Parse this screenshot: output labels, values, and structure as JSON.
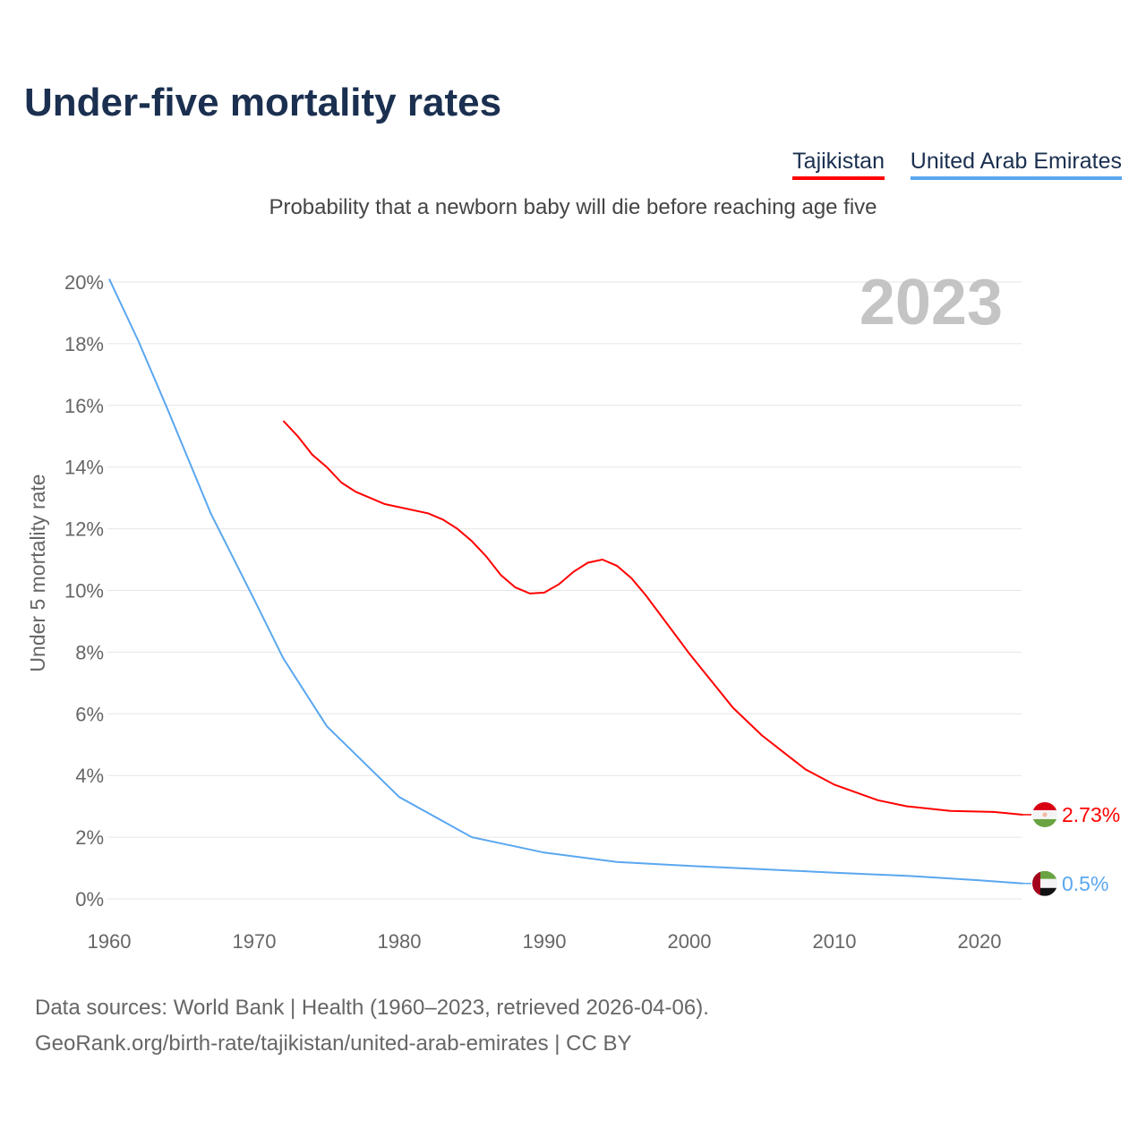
{
  "title": "Under-five mortality rates",
  "subtitle": "Probability that a newborn baby will die before reaching age five",
  "year_watermark": "2023",
  "footer": {
    "line1": "Data sources: World Bank | Health (1960–2023, retrieved 2026-04-06).",
    "line2": "GeoRank.org/birth-rate/tajikistan/united-arab-emirates | CC BY"
  },
  "chart_data": {
    "type": "line",
    "title": "Under-five mortality rates",
    "xlabel": "",
    "ylabel": "Under 5 mortality rate",
    "xlim": [
      1960,
      2023
    ],
    "ylim": [
      0,
      20
    ],
    "x_ticks": [
      "1960",
      "1970",
      "1980",
      "1990",
      "2000",
      "2010",
      "2020"
    ],
    "y_ticks": [
      "0%",
      "2%",
      "4%",
      "6%",
      "8%",
      "10%",
      "12%",
      "14%",
      "16%",
      "18%",
      "20%"
    ],
    "grid": true,
    "legend": "top-right",
    "series": [
      {
        "name": "Tajikistan",
        "color": "#ff0000",
        "end_label": "2.73%",
        "x": [
          1972,
          1973,
          1974,
          1975,
          1976,
          1977,
          1979,
          1982,
          1983,
          1984,
          1985,
          1986,
          1987,
          1988,
          1989,
          1990,
          1991,
          1992,
          1993,
          1994,
          1995,
          1996,
          1997,
          2000,
          2003,
          2005,
          2008,
          2010,
          2013,
          2015,
          2018,
          2021,
          2023
        ],
        "y": [
          15.5,
          15.0,
          14.4,
          14.0,
          13.5,
          13.2,
          12.8,
          12.5,
          12.3,
          12.0,
          11.6,
          11.1,
          10.5,
          10.1,
          9.9,
          9.93,
          10.2,
          10.6,
          10.9,
          11.0,
          10.8,
          10.4,
          9.84,
          7.95,
          6.2,
          5.3,
          4.2,
          3.7,
          3.2,
          3.0,
          2.85,
          2.82,
          2.73
        ]
      },
      {
        "name": "United Arab Emirates",
        "color": "#5aa7f0",
        "end_label": "0.5%",
        "x": [
          1960,
          1962,
          1964,
          1967,
          1970,
          1972,
          1975,
          1980,
          1985,
          1990,
          1995,
          2000,
          2005,
          2010,
          2015,
          2020,
          2023
        ],
        "y": [
          20.1,
          18.1,
          15.9,
          12.5,
          9.7,
          7.8,
          5.6,
          3.3,
          2.0,
          1.5,
          1.2,
          1.07,
          0.96,
          0.85,
          0.75,
          0.6,
          0.5
        ]
      }
    ]
  }
}
